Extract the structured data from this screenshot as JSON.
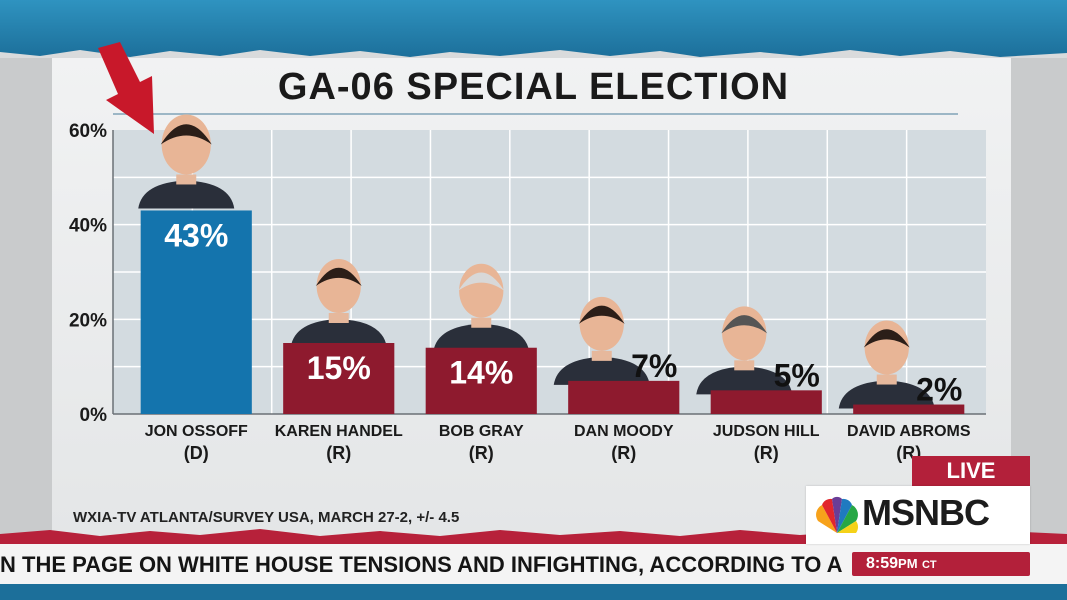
{
  "title": "GA-06 SPECIAL ELECTION",
  "source": "WXIA-TV ATLANTA/SURVEY USA, MARCH 27-2, +/- 4.5",
  "ticker": "N THE PAGE ON WHITE HOUSE TENSIONS AND INFIGHTING, ACCORDING TO A",
  "clock": {
    "time": "8:59",
    "meridiem": "PM",
    "tz": "CT"
  },
  "live_label": "LIVE",
  "network": "MSNBC",
  "colors": {
    "democrat": "#1474ad",
    "republican": "#8e1a2e",
    "grid": "#ffffff",
    "plot_bg": "#d3dbe0",
    "arrow": "#c8182a"
  },
  "chart_data": {
    "type": "bar",
    "title": "GA-06 SPECIAL ELECTION",
    "xlabel": "",
    "ylabel": "",
    "ylim": [
      0,
      60
    ],
    "yticks": [
      0,
      20,
      40,
      60
    ],
    "ytick_labels": [
      "0%",
      "20%",
      "40%",
      "60%"
    ],
    "grid": true,
    "categories": [
      "JON OSSOFF",
      "KAREN HANDEL",
      "BOB GRAY",
      "DAN MOODY",
      "JUDSON HILL",
      "DAVID ABROMS"
    ],
    "parties": [
      "(D)",
      "(R)",
      "(R)",
      "(R)",
      "(R)",
      "(R)"
    ],
    "values": [
      43,
      15,
      14,
      7,
      5,
      2
    ],
    "value_labels": [
      "43%",
      "15%",
      "14%",
      "7%",
      "5%",
      "2%"
    ]
  }
}
